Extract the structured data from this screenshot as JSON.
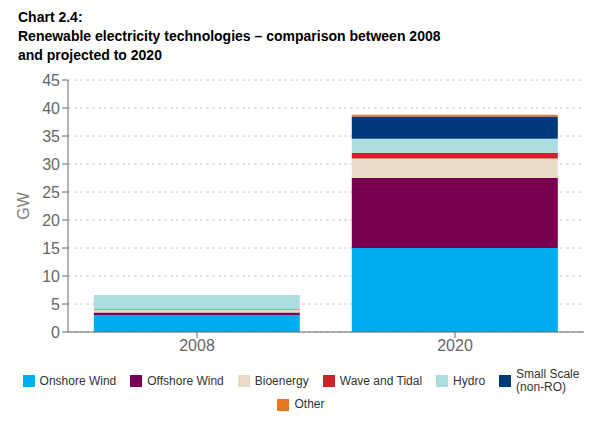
{
  "chart_data": {
    "type": "bar",
    "title": "Chart 2.4:",
    "subtitle": "Renewable electricity technologies – comparison between 2008\nand projected to 2020",
    "categories": [
      "2008",
      "2020"
    ],
    "series": [
      {
        "name": "Onshore Wind",
        "color": "#00AEEF",
        "values": [
          3.0,
          15.0
        ]
      },
      {
        "name": "Offshore Wind",
        "color": "#7B0051",
        "values": [
          0.5,
          12.5
        ]
      },
      {
        "name": "Bioenergy",
        "color": "#E8DCC8",
        "values": [
          0.5,
          3.5
        ]
      },
      {
        "name": "Wave and Tidal",
        "color": "#D0202A",
        "values": [
          0.1,
          1.0
        ]
      },
      {
        "name": "Hydro",
        "color": "#AADCE0",
        "values": [
          2.5,
          2.5
        ]
      },
      {
        "name": "Small Scale\n(non-RO)",
        "color": "#003A7A",
        "values": [
          0.0,
          4.0
        ]
      },
      {
        "name": "Other",
        "color": "#E87722",
        "values": [
          0.0,
          0.3
        ]
      }
    ],
    "y_label": "GW",
    "ylim": [
      0,
      45
    ],
    "yticks": [
      0,
      5,
      10,
      15,
      20,
      25,
      30,
      35,
      40,
      45
    ],
    "stacked": true,
    "grid": true,
    "legend": "bottom"
  }
}
